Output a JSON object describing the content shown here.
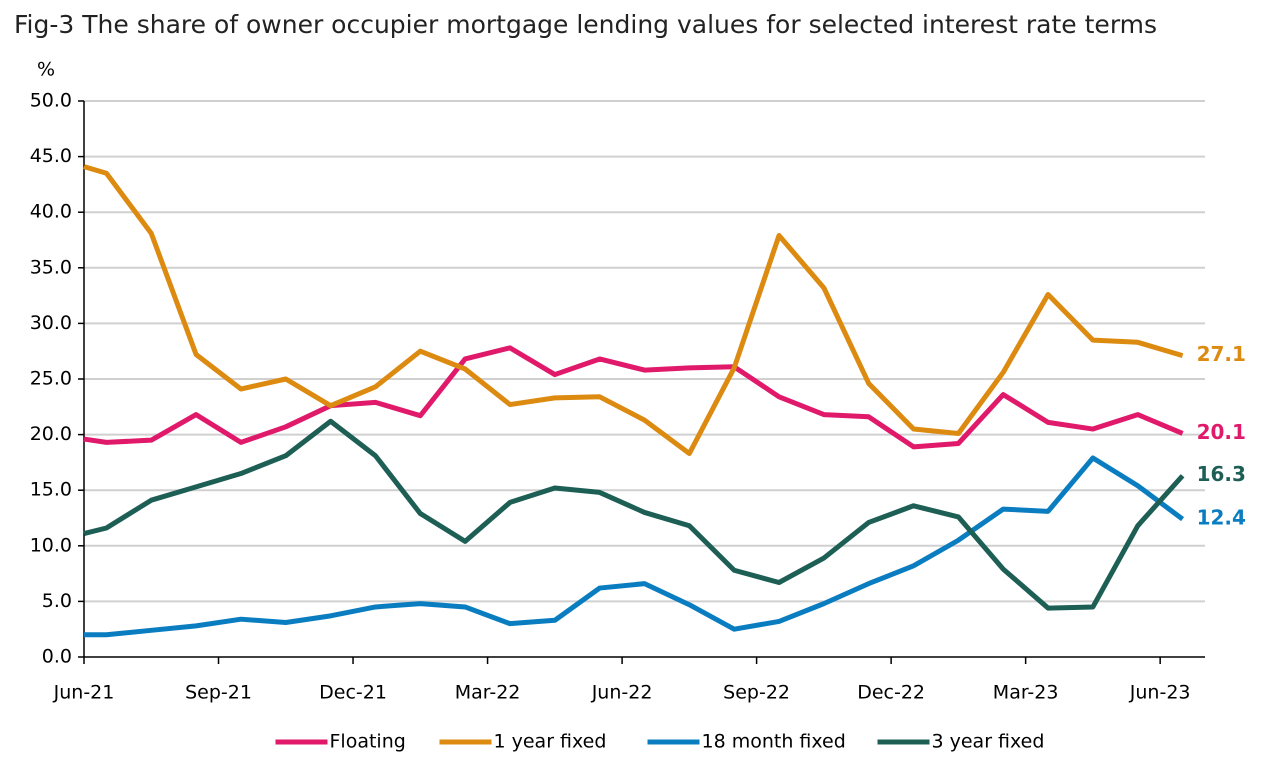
{
  "chart_data": {
    "type": "line",
    "title": "Fig-3 The share of owner occupier mortgage lending values for selected interest rate terms",
    "y_label": "%",
    "x": [
      0,
      0.5,
      1.5,
      2.5,
      3.5,
      4.5,
      5.5,
      6.5,
      7.5,
      8.5,
      9.5,
      10.5,
      11.5,
      12.5,
      13.5,
      14.5,
      15.5,
      16.5,
      17.5,
      18.5,
      19.5,
      20.5,
      21.5,
      22.5,
      23.5,
      24.5
    ],
    "xlim": [
      0,
      25
    ],
    "xticks": [
      {
        "value": 0,
        "label": "Jun-21"
      },
      {
        "value": 3,
        "label": "Sep-21"
      },
      {
        "value": 6,
        "label": "Dec-21"
      },
      {
        "value": 9,
        "label": "Mar-22"
      },
      {
        "value": 12,
        "label": "Jun-22"
      },
      {
        "value": 15,
        "label": "Sep-22"
      },
      {
        "value": 18,
        "label": "Dec-22"
      },
      {
        "value": 21,
        "label": "Mar-23"
      },
      {
        "value": 24,
        "label": "Jun-23"
      }
    ],
    "ylim": [
      0,
      50
    ],
    "yticks": [
      {
        "value": 0,
        "label": "0.0"
      },
      {
        "value": 5,
        "label": "5.0"
      },
      {
        "value": 10,
        "label": "10.0"
      },
      {
        "value": 15,
        "label": "15.0"
      },
      {
        "value": 20,
        "label": "20.0"
      },
      {
        "value": 25,
        "label": "25.0"
      },
      {
        "value": 30,
        "label": "30.0"
      },
      {
        "value": 35,
        "label": "35.0"
      },
      {
        "value": 40,
        "label": "40.0"
      },
      {
        "value": 45,
        "label": "45.0"
      },
      {
        "value": 50,
        "label": "50.0"
      }
    ],
    "grid": true,
    "legend": "bottom",
    "series": [
      {
        "name": "Floating",
        "color": "#e0196a",
        "values": [
          19.6,
          19.3,
          19.5,
          21.8,
          19.3,
          20.7,
          22.6,
          22.9,
          21.7,
          26.8,
          27.8,
          25.4,
          26.8,
          25.8,
          26.0,
          26.1,
          23.4,
          21.8,
          21.6,
          18.9,
          19.2,
          23.6,
          21.1,
          20.5,
          21.8,
          20.1
        ]
      },
      {
        "name": "1 year fixed",
        "color": "#dc8a10",
        "values": [
          44.1,
          43.5,
          38.1,
          27.2,
          24.1,
          25.0,
          22.6,
          24.3,
          27.5,
          25.9,
          22.7,
          23.3,
          23.4,
          21.3,
          18.3,
          26.0,
          37.9,
          33.2,
          24.6,
          20.5,
          20.1,
          25.6,
          32.6,
          28.5,
          28.3,
          27.1
        ]
      },
      {
        "name": "18 month fixed",
        "color": "#0a7dc1",
        "values": [
          2.0,
          2.0,
          2.4,
          2.8,
          3.4,
          3.1,
          3.7,
          4.5,
          4.8,
          4.5,
          3.0,
          3.3,
          6.2,
          6.6,
          4.7,
          2.5,
          3.2,
          4.8,
          6.6,
          8.2,
          10.5,
          13.3,
          13.1,
          17.9,
          15.4,
          12.4
        ]
      },
      {
        "name": "3 year fixed",
        "color": "#1e5f55",
        "values": [
          11.1,
          11.6,
          14.1,
          15.3,
          16.5,
          18.1,
          21.2,
          18.1,
          12.9,
          10.4,
          13.9,
          15.2,
          14.8,
          13.0,
          11.8,
          7.8,
          6.7,
          8.9,
          12.1,
          13.6,
          12.6,
          7.9,
          4.4,
          4.5,
          11.8,
          16.3
        ]
      }
    ]
  }
}
